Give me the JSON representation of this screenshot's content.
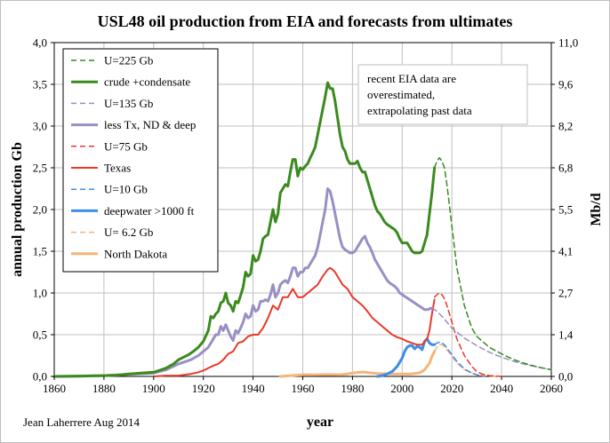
{
  "chart_data": {
    "type": "line",
    "title": "USL48 oil production from EIA and forecasts from ultimates",
    "xlabel": "year",
    "ylabel_left": "annual production Gb",
    "ylabel_right": "Mb/d",
    "xlim": [
      1860,
      2060
    ],
    "ylim_left": [
      0,
      4
    ],
    "ylim_right": [
      0,
      11
    ],
    "x_ticks": [
      "1860",
      "1880",
      "1900",
      "1920",
      "1940",
      "1960",
      "1980",
      "2000",
      "2020",
      "2040",
      "2060"
    ],
    "y_ticks_left": [
      "0,0",
      "0,5",
      "1,0",
      "1,5",
      "2,0",
      "2,5",
      "3,0",
      "3,5",
      "4,0"
    ],
    "y_ticks_right": [
      "0,0",
      "1,4",
      "2,7",
      "4,1",
      "5,5",
      "6,8",
      "8,2",
      "9,6",
      "11,0"
    ],
    "grid": true,
    "legend_position": "top-left",
    "annotation": [
      "recent EIA data are",
      "overestimated,",
      "extrapolating past data"
    ],
    "credit": "Jean Laherrere Aug 2014",
    "series": [
      {
        "name": "U=225 Gb",
        "color": "#3a8a1e",
        "dash": true,
        "width": 1.5,
        "x": [
          2013,
          2014,
          2015,
          2016,
          2017,
          2018,
          2020,
          2022,
          2025,
          2028,
          2030,
          2035,
          2040,
          2045,
          2050,
          2055,
          2060
        ],
        "y": [
          2.5,
          2.58,
          2.62,
          2.58,
          2.5,
          2.3,
          1.8,
          1.3,
          0.85,
          0.58,
          0.48,
          0.35,
          0.27,
          0.2,
          0.15,
          0.11,
          0.08
        ]
      },
      {
        "name": "crude +condensate",
        "color": "#3a8a1e",
        "dash": false,
        "width": 3,
        "x": [
          1860,
          1870,
          1875,
          1880,
          1885,
          1890,
          1895,
          1900,
          1903,
          1905,
          1908,
          1910,
          1912,
          1914,
          1916,
          1918,
          1920,
          1922,
          1923,
          1924,
          1925,
          1926,
          1927,
          1928,
          1929,
          1930,
          1931,
          1932,
          1933,
          1934,
          1935,
          1936,
          1937,
          1938,
          1939,
          1940,
          1941,
          1942,
          1943,
          1944,
          1945,
          1946,
          1947,
          1948,
          1949,
          1950,
          1951,
          1952,
          1953,
          1954,
          1955,
          1956,
          1957,
          1958,
          1959,
          1960,
          1961,
          1962,
          1963,
          1964,
          1965,
          1966,
          1967,
          1968,
          1969,
          1970,
          1971,
          1972,
          1973,
          1974,
          1975,
          1976,
          1977,
          1978,
          1979,
          1980,
          1981,
          1982,
          1983,
          1984,
          1985,
          1986,
          1987,
          1988,
          1989,
          1990,
          1991,
          1992,
          1993,
          1994,
          1995,
          1996,
          1997,
          1998,
          1999,
          2000,
          2001,
          2002,
          2003,
          2004,
          2005,
          2006,
          2007,
          2008,
          2009,
          2010,
          2011,
          2012,
          2013
        ],
        "y": [
          0,
          0.003,
          0.006,
          0.01,
          0.015,
          0.03,
          0.04,
          0.05,
          0.08,
          0.1,
          0.15,
          0.2,
          0.23,
          0.26,
          0.3,
          0.35,
          0.42,
          0.55,
          0.72,
          0.7,
          0.75,
          0.78,
          0.88,
          0.9,
          1.0,
          0.88,
          0.85,
          0.78,
          0.9,
          0.88,
          0.97,
          1.07,
          1.25,
          1.2,
          1.23,
          1.45,
          1.38,
          1.4,
          1.5,
          1.65,
          1.68,
          1.7,
          1.85,
          2.0,
          1.85,
          1.95,
          2.2,
          2.25,
          2.3,
          2.28,
          2.45,
          2.6,
          2.6,
          2.4,
          2.5,
          2.48,
          2.52,
          2.55,
          2.62,
          2.68,
          2.75,
          2.9,
          3.05,
          3.2,
          3.35,
          3.52,
          3.45,
          3.45,
          3.3,
          3.1,
          2.9,
          2.75,
          2.7,
          2.6,
          2.55,
          2.55,
          2.55,
          2.58,
          2.5,
          2.45,
          2.45,
          2.35,
          2.25,
          2.15,
          2.05,
          1.98,
          1.95,
          1.9,
          1.85,
          1.82,
          1.8,
          1.78,
          1.76,
          1.72,
          1.65,
          1.6,
          1.6,
          1.6,
          1.55,
          1.5,
          1.48,
          1.48,
          1.48,
          1.5,
          1.6,
          1.7,
          1.95,
          2.2,
          2.5
        ]
      },
      {
        "name": "U=135 Gb",
        "color": "#9a8fc4",
        "dash": true,
        "width": 1.5,
        "x": [
          2012,
          2014,
          2016,
          2018,
          2020,
          2025,
          2030,
          2035,
          2040,
          2045,
          2050,
          2055,
          2060
        ],
        "y": [
          0.82,
          0.78,
          0.72,
          0.65,
          0.58,
          0.46,
          0.37,
          0.29,
          0.23,
          0.18,
          0.14,
          0.11,
          0.08
        ]
      },
      {
        "name": "less Tx, ND & deep",
        "color": "#9a8fc4",
        "dash": false,
        "width": 3,
        "x": [
          1860,
          1880,
          1890,
          1900,
          1905,
          1910,
          1915,
          1918,
          1920,
          1922,
          1924,
          1925,
          1926,
          1927,
          1928,
          1929,
          1930,
          1931,
          1932,
          1933,
          1934,
          1935,
          1936,
          1937,
          1938,
          1939,
          1940,
          1941,
          1942,
          1943,
          1944,
          1945,
          1946,
          1947,
          1948,
          1949,
          1950,
          1951,
          1952,
          1953,
          1954,
          1955,
          1956,
          1957,
          1958,
          1959,
          1960,
          1961,
          1962,
          1963,
          1964,
          1965,
          1966,
          1967,
          1968,
          1969,
          1970,
          1971,
          1972,
          1973,
          1974,
          1975,
          1976,
          1977,
          1978,
          1979,
          1980,
          1981,
          1982,
          1983,
          1984,
          1985,
          1986,
          1987,
          1988,
          1989,
          1990,
          1991,
          1992,
          1993,
          1994,
          1995,
          1996,
          1997,
          1998,
          1999,
          2000,
          2001,
          2002,
          2003,
          2004,
          2005,
          2006,
          2007,
          2008,
          2009,
          2010,
          2011,
          2012
        ],
        "y": [
          0,
          0.01,
          0.025,
          0.04,
          0.08,
          0.15,
          0.2,
          0.25,
          0.3,
          0.35,
          0.45,
          0.5,
          0.5,
          0.6,
          0.55,
          0.62,
          0.55,
          0.48,
          0.43,
          0.55,
          0.52,
          0.58,
          0.65,
          0.75,
          0.7,
          0.72,
          0.85,
          0.78,
          0.8,
          0.9,
          0.9,
          0.92,
          0.9,
          0.98,
          1.1,
          0.95,
          1.0,
          1.1,
          1.13,
          1.15,
          1.12,
          1.2,
          1.3,
          1.3,
          1.2,
          1.25,
          1.25,
          1.3,
          1.3,
          1.35,
          1.4,
          1.45,
          1.55,
          1.7,
          1.85,
          2.0,
          2.25,
          2.22,
          2.1,
          1.95,
          1.8,
          1.65,
          1.55,
          1.52,
          1.5,
          1.48,
          1.48,
          1.5,
          1.55,
          1.6,
          1.65,
          1.68,
          1.6,
          1.55,
          1.48,
          1.4,
          1.35,
          1.3,
          1.25,
          1.2,
          1.15,
          1.12,
          1.1,
          1.08,
          1.05,
          1.0,
          0.98,
          0.96,
          0.94,
          0.92,
          0.9,
          0.88,
          0.86,
          0.84,
          0.82,
          0.8,
          0.8,
          0.81,
          0.82
        ]
      },
      {
        "name": "U=75 Gb",
        "color": "#e8392b",
        "dash": true,
        "width": 1.5,
        "x": [
          2013,
          2014,
          2015,
          2016,
          2017,
          2018,
          2020,
          2022,
          2025,
          2028,
          2030,
          2032,
          2035,
          2040
        ],
        "y": [
          0.95,
          0.98,
          1.0,
          0.98,
          0.93,
          0.85,
          0.65,
          0.45,
          0.25,
          0.12,
          0.06,
          0.03,
          0.01,
          0.0
        ]
      },
      {
        "name": "Texas",
        "color": "#e8392b",
        "dash": false,
        "width": 2,
        "x": [
          1900,
          1905,
          1910,
          1915,
          1918,
          1920,
          1922,
          1924,
          1926,
          1928,
          1930,
          1932,
          1934,
          1936,
          1938,
          1940,
          1942,
          1944,
          1946,
          1948,
          1950,
          1952,
          1954,
          1956,
          1958,
          1960,
          1962,
          1964,
          1966,
          1968,
          1970,
          1971,
          1972,
          1973,
          1974,
          1976,
          1978,
          1980,
          1982,
          1984,
          1986,
          1988,
          1990,
          1992,
          1994,
          1996,
          1998,
          2000,
          2002,
          2004,
          2006,
          2008,
          2010,
          2011,
          2012,
          2013
        ],
        "y": [
          0.0,
          0.01,
          0.01,
          0.03,
          0.05,
          0.07,
          0.1,
          0.13,
          0.15,
          0.2,
          0.27,
          0.3,
          0.4,
          0.42,
          0.48,
          0.5,
          0.5,
          0.58,
          0.7,
          0.85,
          0.8,
          0.95,
          0.95,
          1.05,
          0.95,
          0.95,
          1.0,
          1.05,
          1.1,
          1.2,
          1.28,
          1.3,
          1.28,
          1.25,
          1.2,
          1.1,
          1.05,
          0.95,
          0.9,
          0.85,
          0.78,
          0.7,
          0.65,
          0.6,
          0.55,
          0.5,
          0.47,
          0.45,
          0.42,
          0.4,
          0.38,
          0.38,
          0.45,
          0.55,
          0.75,
          0.92
        ]
      },
      {
        "name": "U=10 Gb",
        "color": "#3d8ee8",
        "dash": true,
        "width": 1.5,
        "x": [
          2013,
          2014,
          2015,
          2016,
          2017,
          2018,
          2020,
          2022,
          2025,
          2028,
          2030,
          2033
        ],
        "y": [
          0.38,
          0.4,
          0.41,
          0.4,
          0.38,
          0.34,
          0.26,
          0.18,
          0.09,
          0.04,
          0.02,
          0.0
        ]
      },
      {
        "name": "deepwater >1000 ft",
        "color": "#3d8ee8",
        "dash": false,
        "width": 3,
        "x": [
          1990,
          1992,
          1994,
          1996,
          1998,
          2000,
          2001,
          2002,
          2003,
          2004,
          2005,
          2006,
          2007,
          2008,
          2009,
          2010,
          2011,
          2012,
          2013
        ],
        "y": [
          0.0,
          0.01,
          0.03,
          0.06,
          0.12,
          0.22,
          0.3,
          0.35,
          0.37,
          0.37,
          0.33,
          0.36,
          0.35,
          0.32,
          0.42,
          0.45,
          0.4,
          0.38,
          0.38
        ]
      },
      {
        "name": "U= 6.2 Gb",
        "color": "#f5b478",
        "dash": true,
        "width": 1.5,
        "x": [
          2013,
          2014,
          2015,
          2016,
          2017,
          2018,
          2020,
          2022,
          2025,
          2028,
          2030,
          2035,
          2040
        ],
        "y": [
          0.3,
          0.35,
          0.38,
          0.38,
          0.36,
          0.32,
          0.24,
          0.16,
          0.08,
          0.04,
          0.02,
          0.005,
          0.0
        ]
      },
      {
        "name": "North Dakota",
        "color": "#f5b478",
        "dash": false,
        "width": 3,
        "x": [
          1951,
          1955,
          1960,
          1965,
          1970,
          1975,
          1978,
          1980,
          1983,
          1985,
          1988,
          1990,
          1995,
          2000,
          2003,
          2005,
          2007,
          2008,
          2009,
          2010,
          2011,
          2012,
          2013
        ],
        "y": [
          0.0,
          0.01,
          0.02,
          0.02,
          0.022,
          0.02,
          0.03,
          0.04,
          0.05,
          0.05,
          0.04,
          0.035,
          0.03,
          0.03,
          0.03,
          0.035,
          0.045,
          0.06,
          0.08,
          0.12,
          0.16,
          0.24,
          0.3
        ]
      }
    ]
  }
}
